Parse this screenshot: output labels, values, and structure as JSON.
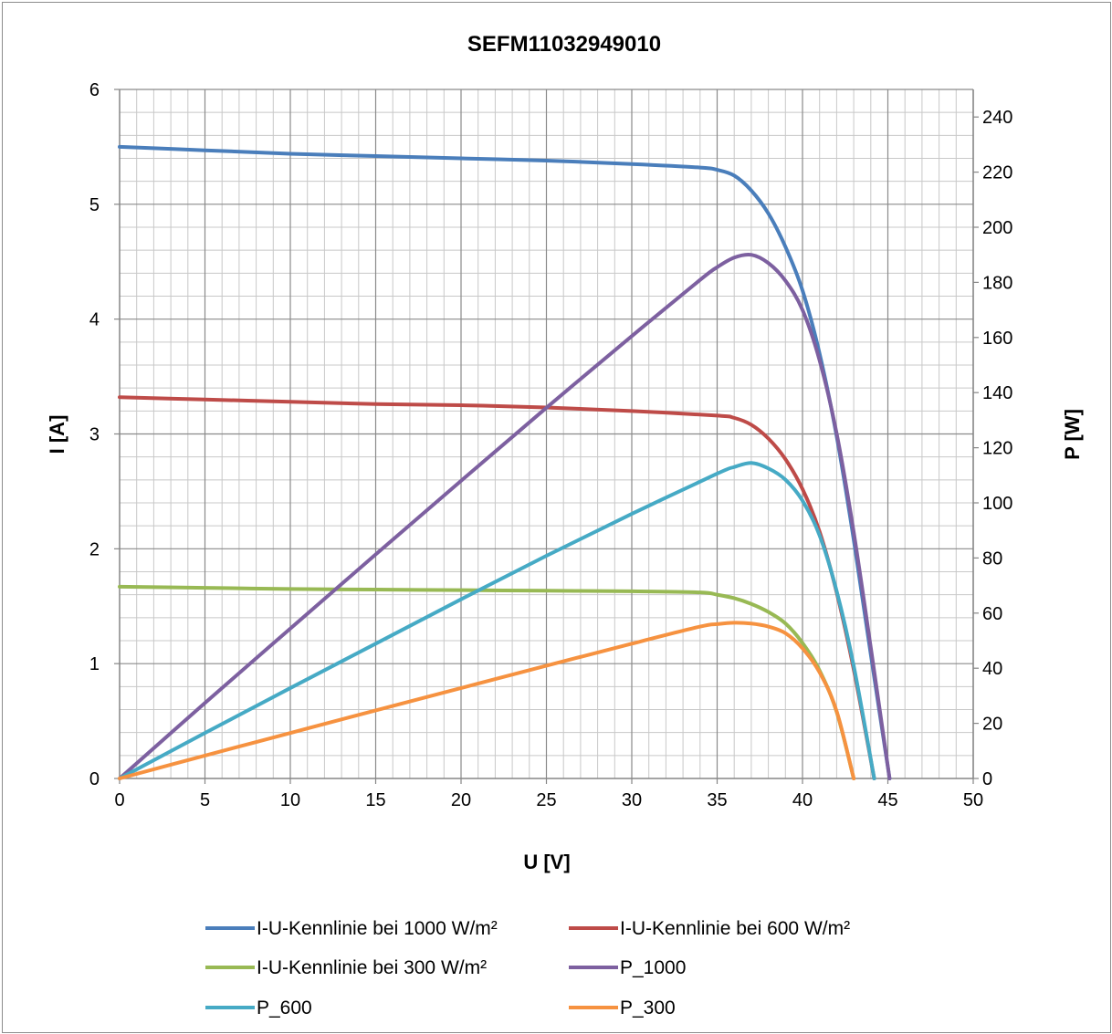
{
  "chart_data": {
    "type": "line",
    "title": "SEFM11032949010",
    "xlabel": "U [V]",
    "ylabel": "I [A]",
    "y2label": "P [W]",
    "xlim": [
      0,
      50
    ],
    "ylim": [
      0,
      6
    ],
    "y2lim": [
      0,
      250
    ],
    "x_ticks": [
      "0",
      "5",
      "10",
      "15",
      "20",
      "25",
      "30",
      "35",
      "40",
      "45",
      "50"
    ],
    "y_ticks": [
      "0",
      "1",
      "2",
      "3",
      "4",
      "5",
      "6"
    ],
    "y2_ticks": [
      "0",
      "20",
      "40",
      "60",
      "80",
      "100",
      "120",
      "140",
      "160",
      "180",
      "200",
      "220",
      "240"
    ],
    "grid": true,
    "legend_position": "bottom",
    "series": [
      {
        "name": "I-U-Kennlinie bei 1000 W/m²",
        "color": "#4a7ebb",
        "axis": "left",
        "x": [
          0,
          5,
          10,
          15,
          20,
          25,
          30,
          34,
          35,
          36,
          37,
          38,
          39,
          40,
          41,
          42,
          43,
          44,
          45.1
        ],
        "y": [
          5.5,
          5.47,
          5.44,
          5.42,
          5.4,
          5.38,
          5.35,
          5.32,
          5.3,
          5.25,
          5.12,
          4.92,
          4.63,
          4.25,
          3.7,
          2.98,
          2.08,
          1.08,
          0
        ]
      },
      {
        "name": "I-U-Kennlinie bei 600 W/m²",
        "color": "#be4b48",
        "axis": "left",
        "x": [
          0,
          5,
          10,
          15,
          20,
          25,
          30,
          35,
          36,
          37,
          38,
          39,
          40,
          41,
          42,
          43,
          44.2
        ],
        "y": [
          3.32,
          3.3,
          3.28,
          3.26,
          3.25,
          3.23,
          3.2,
          3.16,
          3.14,
          3.08,
          2.96,
          2.78,
          2.52,
          2.15,
          1.62,
          0.95,
          0
        ]
      },
      {
        "name": "I-U-Kennlinie bei 300 W/m²",
        "color": "#98b954",
        "axis": "left",
        "x": [
          0,
          5,
          10,
          15,
          20,
          25,
          30,
          34,
          35,
          36,
          37,
          38,
          39,
          40,
          41,
          42,
          43
        ],
        "y": [
          1.67,
          1.66,
          1.65,
          1.645,
          1.64,
          1.635,
          1.63,
          1.62,
          1.6,
          1.57,
          1.52,
          1.45,
          1.35,
          1.18,
          0.94,
          0.58,
          0
        ]
      },
      {
        "name": "P_1000",
        "color": "#7d60a0",
        "axis": "right",
        "x": [
          0,
          5,
          10,
          15,
          20,
          25,
          30,
          34,
          35,
          36,
          37,
          38,
          39,
          40,
          41,
          42,
          43,
          44,
          45.1
        ],
        "y": [
          0,
          27.4,
          54.4,
          81.3,
          108,
          134.5,
          160.5,
          180.9,
          185.5,
          189,
          190,
          187,
          180.6,
          170,
          151.7,
          125.2,
          89.4,
          47.5,
          0
        ]
      },
      {
        "name": "P_600",
        "color": "#46aac5",
        "axis": "right",
        "x": [
          0,
          5,
          10,
          15,
          20,
          25,
          30,
          35,
          36,
          37,
          38,
          39,
          40,
          41,
          42,
          43,
          44.2
        ],
        "y": [
          0,
          16.5,
          32.8,
          48.9,
          65,
          80.8,
          96,
          110.6,
          113,
          114.5,
          112.5,
          108.4,
          100.8,
          88.2,
          68,
          40.9,
          0
        ]
      },
      {
        "name": "P_300",
        "color": "#f69240",
        "axis": "right",
        "x": [
          0,
          5,
          10,
          15,
          20,
          25,
          30,
          34,
          35,
          36,
          37,
          38,
          39,
          40,
          41,
          42,
          43
        ],
        "y": [
          0,
          8.3,
          16.5,
          24.7,
          32.8,
          40.9,
          48.9,
          55.1,
          56,
          56.5,
          56.2,
          55.1,
          52.7,
          47.2,
          38.5,
          24.4,
          0
        ]
      }
    ]
  }
}
